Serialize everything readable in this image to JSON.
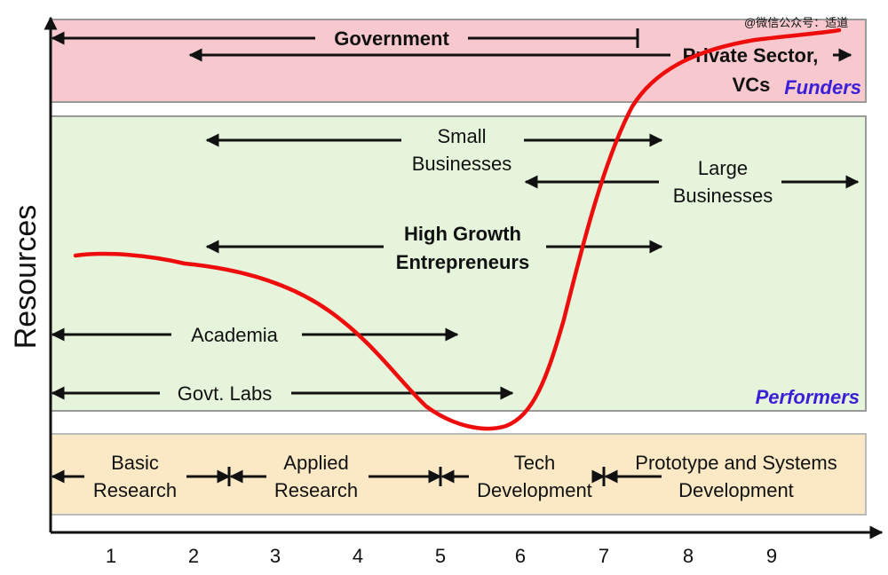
{
  "watermark": "@微信公众号：适道",
  "y_axis_label": "Resources",
  "x_ticks": [
    "1",
    "2",
    "3",
    "4",
    "5",
    "6",
    "7",
    "8",
    "9"
  ],
  "bands": {
    "funders": {
      "tag": "Funders",
      "color": "#f7c9ce"
    },
    "performers": {
      "tag": "Performers",
      "color": "#e6f4dc"
    },
    "stages": {
      "color": "#fbe9c6"
    }
  },
  "funders": {
    "government": "Government",
    "private_line1": "Private Sector,",
    "private_line2": "VCs"
  },
  "performers": {
    "small_line1": "Small",
    "small_line2": "Businesses",
    "large_line1": "Large",
    "large_line2": "Businesses",
    "hg_line1": "High Growth",
    "hg_line2": "Entrepreneurs",
    "academia": "Academia",
    "govt_labs": "Govt. Labs"
  },
  "stages": [
    {
      "line1": "Basic",
      "line2": "Research"
    },
    {
      "line1": "Applied",
      "line2": "Research"
    },
    {
      "line1": "Tech",
      "line2": "Development"
    },
    {
      "line1": "Prototype and Systems",
      "line2": "Development"
    }
  ],
  "colors": {
    "curve": "#ee0d0d",
    "tag": "#3a1fd6"
  }
}
